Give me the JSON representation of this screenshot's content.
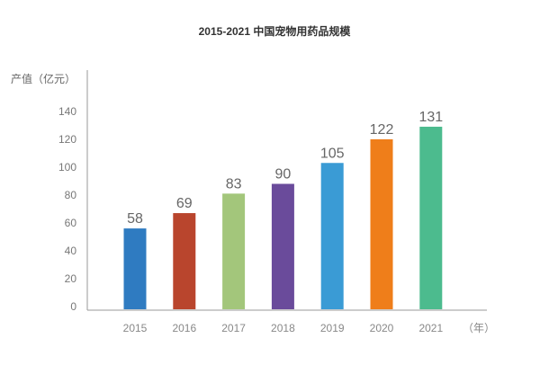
{
  "chart_data": {
    "type": "bar",
    "title": "2015-2021 中国宠物用药品规模",
    "ylabel": "产值（亿元）",
    "xlabel": "（年）",
    "categories": [
      "2015",
      "2016",
      "2017",
      "2018",
      "2019",
      "2020",
      "2021"
    ],
    "values": [
      58,
      69,
      83,
      90,
      105,
      122,
      131
    ],
    "ylim": [
      0,
      140
    ],
    "yticks": [
      0,
      20,
      40,
      60,
      80,
      100,
      120,
      140
    ],
    "grid": false,
    "legend": "none",
    "colors": [
      "#2f7bc1",
      "#b9452d",
      "#a3c67b",
      "#6a4b9b",
      "#3a9bd5",
      "#ef7e1a",
      "#4cbb8e"
    ]
  }
}
